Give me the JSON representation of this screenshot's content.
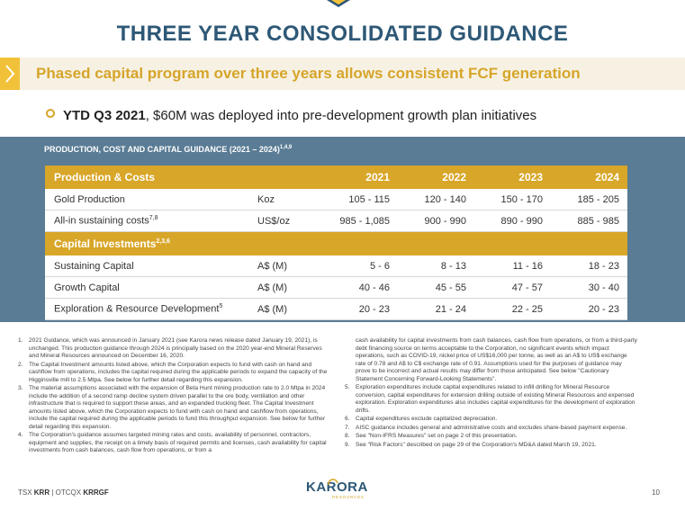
{
  "slide": {
    "title": "THREE YEAR CONSOLIDATED GUIDANCE",
    "subtitle": "Phased capital program over three years allows consistent FCF generation",
    "bullet": {
      "bold": "YTD Q3 2021",
      "rest": ", $60M was deployed into pre-development growth plan initiatives"
    }
  },
  "panel": {
    "title": "PRODUCTION, COST AND CAPITAL GUIDANCE (2021 – 2024)",
    "title_sup": "1,4,9"
  },
  "table": {
    "header": {
      "label": "Production & Costs",
      "years": [
        "2021",
        "2022",
        "2023",
        "2024"
      ]
    },
    "production_rows": [
      {
        "label": "Gold Production",
        "sup": "",
        "unit": "Koz",
        "values": [
          "105 - 115",
          "120 - 140",
          "150 - 170",
          "185 - 205"
        ]
      },
      {
        "label": "All-in sustaining costs",
        "sup": "7,8",
        "unit": "US$/oz",
        "values": [
          "985 - 1,085",
          "900 - 990",
          "890 - 990",
          "885 - 985"
        ]
      }
    ],
    "capital_header": {
      "label": "Capital Investments",
      "sup": "2,3,6"
    },
    "capital_rows": [
      {
        "label": "Sustaining Capital",
        "sup": "",
        "unit": "A$ (M)",
        "values": [
          "5 - 6",
          "8 - 13",
          "11 - 16",
          "18 - 23"
        ]
      },
      {
        "label": "Growth Capital",
        "sup": "",
        "unit": "A$ (M)",
        "values": [
          "40 - 46",
          "45 - 55",
          "47 - 57",
          "30 - 40"
        ]
      },
      {
        "label": "Exploration & Resource Development",
        "sup": "5",
        "unit": "A$ (M)",
        "values": [
          "20 - 23",
          "21 - 24",
          "22 - 25",
          "20 - 23"
        ]
      }
    ]
  },
  "footnotes": {
    "left": [
      {
        "num": "1.",
        "text": "2021 Guidance, which was announced in January 2021 (see Karora news release dated January 19, 2021), is unchanged. This production guidance through 2024 is principally based on the 2020 year-end Mineral Reserves and Mineral Resources announced on December 16, 2020."
      },
      {
        "num": "2.",
        "text": "The Capital Investment amounts listed above, which the Corporation expects to fund with cash on hand and cashflow from operations, includes the capital required during the applicable periods to expand the capacity of the Higginsville mill to 2.5 Mtpa. See below for further detail regarding this expansion."
      },
      {
        "num": "3.",
        "text": "The material assumptions associated with the expansion of Beta Hunt mining production rate to 2.0 Mtpa in 2024 include the addition of a second ramp decline system driven parallel to the ore body, ventilation and other infrastructure that is required to support these areas, and an expanded trucking fleet. The Capital Investment amounts listed above, which the Corporation expects to fund with cash on hand and cashflow from operations, include the capital required during the applicable periods to fund this throughput expansion. See below for further detail regarding this expansion."
      },
      {
        "num": "4.",
        "text": "The Corporation's guidance assumes targeted mining rates and costs, availability of personnel, contractors, equipment and supplies, the receipt on a timely basis of required permits and licenses, cash availability for capital investments from cash balances, cash flow from operations, or from a"
      }
    ],
    "right_continuation": "cash availability for capital investments from cash balances, cash flow from operations, or from a third-party debt financing source on terms acceptable to the Corporation, no significant events which impact operations, such as COVID-19, nickel price of US$16,000 per tonne, as well as an A$ to US$ exchange rate of 0.78 and A$ to C$ exchange rate of 0.91. Assumptions used for the purposes of guidance may prove to be incorrect and actual results may differ from those anticipated. See below \"Cautionary Statement Concerning Forward-Looking Statements\".",
    "right": [
      {
        "num": "5.",
        "text": "Exploration expenditures include capital expenditures related to infill drilling for Mineral Resource conversion, capital expenditures for extension drilling outside of existing Mineral Resources and expensed exploration. Exploration expenditures also includes capital expenditures for the development of exploration drifts."
      },
      {
        "num": "6.",
        "text": "Capital expenditures exclude capitalized depreciation."
      },
      {
        "num": "7.",
        "text": "AISC guidance includes general and administrative costs and excludes share-based payment expense."
      },
      {
        "num": "8.",
        "text": "See \"Non-IFRS Measures\" set on page 2 of this presentation."
      },
      {
        "num": "9.",
        "text": "See \"Risk Factors\" described on page 29 of the Corporation's MD&A dated March 19, 2021."
      }
    ]
  },
  "footer": {
    "tsx_label": "TSX ",
    "tsx_ticker": "KRR",
    "separator": " | ",
    "otc_label": "OTCQX ",
    "otc_ticker": "KRRGF",
    "logo_text": "KARORA",
    "logo_sub": "RESOURCES",
    "page_number": "10"
  },
  "colors": {
    "navy": "#2e5876",
    "gold": "#d8a628",
    "panel": "#5a7c95"
  }
}
